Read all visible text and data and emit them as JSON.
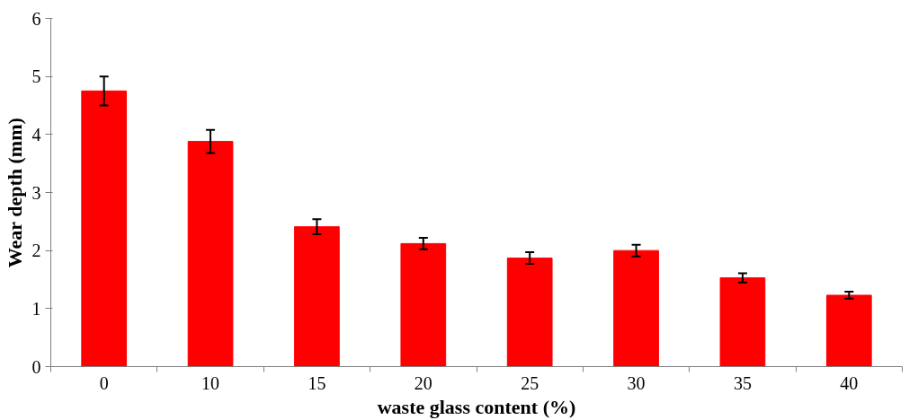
{
  "chart_data": {
    "type": "bar",
    "xlabel": "waste glass content (%)",
    "ylabel": "Wear depth (mm)",
    "categories": [
      "0",
      "10",
      "15",
      "20",
      "25",
      "30",
      "35",
      "40"
    ],
    "values": [
      4.75,
      3.88,
      2.41,
      2.12,
      1.87,
      2.0,
      1.53,
      1.23
    ],
    "errors": [
      0.25,
      0.2,
      0.13,
      0.1,
      0.1,
      0.1,
      0.08,
      0.06
    ],
    "color": "#ff0000",
    "ylim": [
      0,
      6
    ],
    "yticks": [
      0,
      1,
      2,
      3,
      4,
      5,
      6
    ],
    "grid": false
  }
}
